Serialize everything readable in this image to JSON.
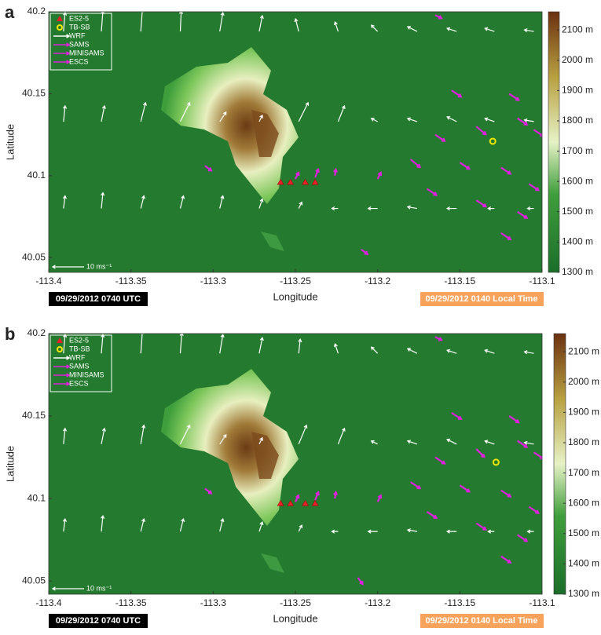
{
  "chart_data": [
    {
      "type": "quiver",
      "panel_label": "a",
      "xlabel": "Longitude",
      "ylabel": "Latitude",
      "xlim": [
        -113.4,
        -113.1
      ],
      "ylim": [
        40.041,
        40.2
      ],
      "xticks": [
        -113.4,
        -113.35,
        -113.3,
        -113.25,
        -113.2,
        -113.15,
        -113.1
      ],
      "yticks": [
        40.05,
        40.1,
        40.15,
        40.2
      ],
      "colorbar": {
        "lim": [
          1300,
          2160
        ],
        "ticks": [
          {
            "value": 1300,
            "label": "1300 m"
          },
          {
            "value": 1400,
            "label": "1400 m"
          },
          {
            "value": 1500,
            "label": "1500 m"
          },
          {
            "value": 1600,
            "label": "1600 m"
          },
          {
            "value": 1700,
            "label": "1700 m"
          },
          {
            "value": 1800,
            "label": "1800 m"
          },
          {
            "value": 1900,
            "label": "1900 m"
          },
          {
            "value": 2000,
            "label": "2000 m"
          },
          {
            "value": 2100,
            "label": "2100 m"
          }
        ]
      },
      "scale_key": {
        "value": 10,
        "label": "10 ms⁻¹"
      },
      "footer_left": "09/29/2012 0740 UTC",
      "footer_right": "09/29/2012 0140 Local Time",
      "series": [
        {
          "name": "ES2-5",
          "color": "#e8202a",
          "marker": "triangle",
          "x": [
            -113.259,
            -113.253,
            -113.244,
            -113.238
          ],
          "y": [
            40.096,
            40.096,
            40.096,
            40.096
          ]
        },
        {
          "name": "TB-SB",
          "color": "#f2e800",
          "marker": "circle",
          "x": [
            -113.13
          ],
          "y": [
            40.121
          ]
        },
        {
          "name": "WRF",
          "color": "#ffffff",
          "marker": "vector",
          "x": [
            -113.391,
            -113.368,
            -113.344,
            -113.32,
            -113.296,
            -113.272,
            -113.248,
            -113.224,
            -113.2,
            -113.176,
            -113.152,
            -113.129,
            -113.105,
            -113.391,
            -113.368,
            -113.344,
            -113.32,
            -113.296,
            -113.272,
            -113.248,
            -113.224,
            -113.2,
            -113.176,
            -113.152,
            -113.129,
            -113.105,
            -113.391,
            -113.368,
            -113.344,
            -113.32,
            -113.296,
            -113.272,
            -113.248,
            -113.224,
            -113.2,
            -113.176,
            -113.152,
            -113.129,
            -113.105
          ],
          "y": [
            40.188,
            40.188,
            40.188,
            40.188,
            40.188,
            40.188,
            40.188,
            40.188,
            40.188,
            40.188,
            40.188,
            40.188,
            40.188,
            40.133,
            40.133,
            40.133,
            40.133,
            40.133,
            40.133,
            40.133,
            40.133,
            40.133,
            40.133,
            40.133,
            40.133,
            40.133,
            40.08,
            40.08,
            40.08,
            40.08,
            40.08,
            40.08,
            40.08,
            40.08,
            40.08,
            40.08,
            40.08,
            40.08,
            40.08
          ],
          "u": [
            0.5,
            0.5,
            0.5,
            0.3,
            1,
            1,
            -1,
            -1,
            -2,
            -3,
            -3,
            -3,
            -3,
            0.5,
            1,
            1.5,
            3,
            2,
            1,
            3,
            2,
            -2,
            -3,
            -3,
            -3,
            -3,
            0.5,
            0.5,
            1,
            1,
            1,
            1,
            1,
            -2,
            -3,
            -3,
            -3,
            -2,
            -2
          ],
          "v": [
            6,
            6.5,
            7,
            6.5,
            6,
            5,
            4,
            3,
            2,
            1.5,
            1,
            1,
            0.5,
            5,
            5,
            6,
            6,
            3,
            2,
            6,
            5,
            1,
            1,
            1.5,
            1,
            0.5,
            4,
            5,
            4,
            4,
            4,
            3,
            2,
            0,
            0,
            0.5,
            0,
            0,
            0
          ]
        },
        {
          "name": "SAMS",
          "color": "#e020e0",
          "marker": "vector",
          "x": [
            -113.305,
            -113.165,
            -113.21,
            -113.2
          ],
          "y": [
            40.106,
            40.198,
            40.055,
            40.098
          ],
          "u": [
            2,
            2,
            2,
            1
          ],
          "v": [
            -1.5,
            -1,
            -1.5,
            2
          ]
        },
        {
          "name": "MINISAMS",
          "color": "#e020e0",
          "marker": "vector",
          "x": [
            -113.25,
            -113.238,
            -113.226
          ],
          "y": [
            40.098,
            40.099,
            40.1
          ],
          "u": [
            1,
            1,
            0.3
          ],
          "v": [
            2,
            2.5,
            2
          ]
        },
        {
          "name": "ESCS",
          "color": "#e020e0",
          "marker": "vector",
          "x": [
            -113.155,
            -113.12,
            -113.14,
            -113.115,
            -113.165,
            -113.105,
            -113.18,
            -113.15,
            -113.125,
            -113.108,
            -113.17,
            -113.14,
            -113.115,
            -113.125
          ],
          "y": [
            40.152,
            40.15,
            40.13,
            40.135,
            40.125,
            40.128,
            40.11,
            40.108,
            40.105,
            40.095,
            40.092,
            40.085,
            40.078,
            40.065
          ],
          "u": [
            3,
            3,
            3,
            3,
            3,
            3,
            3,
            3,
            3,
            3,
            3,
            3,
            3,
            3
          ],
          "v": [
            -2,
            -2,
            -2.5,
            -2,
            -2,
            -2,
            -2.5,
            -2,
            -2,
            -2,
            -2,
            -2,
            -2,
            -2
          ]
        }
      ]
    },
    {
      "type": "quiver",
      "panel_label": "b",
      "xlabel": "Longitude",
      "ylabel": "Latitude",
      "xlim": [
        -113.4,
        -113.1
      ],
      "ylim": [
        40.042,
        40.2
      ],
      "xticks": [
        -113.4,
        -113.35,
        -113.3,
        -113.25,
        -113.2,
        -113.15,
        -113.1
      ],
      "yticks": [
        40.05,
        40.1,
        40.15,
        40.2
      ],
      "colorbar": {
        "lim": [
          1300,
          2160
        ],
        "ticks": [
          {
            "value": 1300,
            "label": "1300 m"
          },
          {
            "value": 1400,
            "label": "1400 m"
          },
          {
            "value": 1500,
            "label": "1500 m"
          },
          {
            "value": 1600,
            "label": "1600 m"
          },
          {
            "value": 1700,
            "label": "1700 m"
          },
          {
            "value": 1800,
            "label": "1800 m"
          },
          {
            "value": 1900,
            "label": "1900 m"
          },
          {
            "value": 2000,
            "label": "2000 m"
          },
          {
            "value": 2100,
            "label": "2100 m"
          }
        ]
      },
      "scale_key": {
        "value": 10,
        "label": "10 ms⁻¹"
      },
      "footer_left": "09/29/2012 0740 UTC",
      "footer_right": "09/29/2012 0140 Local Time",
      "series": [
        {
          "name": "ES2-5",
          "color": "#e8202a",
          "marker": "triangle",
          "x": [
            -113.259,
            -113.253,
            -113.244,
            -113.238
          ],
          "y": [
            40.097,
            40.097,
            40.097,
            40.097
          ]
        },
        {
          "name": "TB-SB",
          "color": "#f2e800",
          "marker": "circle",
          "x": [
            -113.128
          ],
          "y": [
            40.122
          ]
        },
        {
          "name": "WRF",
          "color": "#ffffff",
          "marker": "vector",
          "x": [
            -113.391,
            -113.368,
            -113.344,
            -113.32,
            -113.296,
            -113.272,
            -113.248,
            -113.224,
            -113.2,
            -113.176,
            -113.152,
            -113.129,
            -113.105,
            -113.391,
            -113.368,
            -113.344,
            -113.32,
            -113.296,
            -113.272,
            -113.248,
            -113.224,
            -113.2,
            -113.176,
            -113.152,
            -113.129,
            -113.105,
            -113.391,
            -113.368,
            -113.344,
            -113.32,
            -113.296,
            -113.272,
            -113.248,
            -113.224,
            -113.2,
            -113.176,
            -113.152,
            -113.129,
            -113.105
          ],
          "y": [
            40.188,
            40.188,
            40.188,
            40.188,
            40.188,
            40.188,
            40.188,
            40.188,
            40.188,
            40.188,
            40.188,
            40.188,
            40.188,
            40.133,
            40.133,
            40.133,
            40.133,
            40.133,
            40.133,
            40.133,
            40.133,
            40.133,
            40.133,
            40.133,
            40.133,
            40.133,
            40.08,
            40.08,
            40.08,
            40.08,
            40.08,
            40.08,
            40.08,
            40.08,
            40.08,
            40.08,
            40.08,
            40.08,
            40.08
          ],
          "u": [
            0.5,
            0.5,
            0.5,
            0.5,
            1,
            1,
            0.5,
            -1,
            -2,
            -3,
            -3,
            -3,
            -3,
            0.5,
            1,
            1,
            3,
            2,
            1,
            2.5,
            2,
            -2,
            -3,
            -3,
            -3,
            -3,
            0.5,
            0.5,
            1,
            1,
            1,
            1,
            1,
            -2,
            -3,
            -3,
            -3,
            -2,
            -2
          ],
          "v": [
            6,
            6,
            7,
            6.5,
            6,
            5,
            4.5,
            3,
            2,
            1.5,
            1,
            1,
            0.5,
            5,
            5,
            6,
            6,
            3,
            2,
            6,
            5,
            1,
            1,
            1.5,
            1,
            0.5,
            4,
            5,
            4,
            4,
            4,
            3,
            2,
            0,
            0,
            0.5,
            0,
            0,
            0
          ]
        },
        {
          "name": "SAMS",
          "color": "#e020e0",
          "marker": "vector",
          "x": [
            -113.305,
            -113.165,
            -113.212,
            -113.2
          ],
          "y": [
            40.106,
            40.198,
            40.052,
            40.098
          ],
          "u": [
            2,
            2,
            1.5,
            1
          ],
          "v": [
            -1.5,
            -1,
            -2,
            2
          ]
        },
        {
          "name": "MINISAMS",
          "color": "#e020e0",
          "marker": "vector",
          "x": [
            -113.25,
            -113.238,
            -113.226
          ],
          "y": [
            40.098,
            40.099,
            40.1
          ],
          "u": [
            1,
            1,
            0.3
          ],
          "v": [
            2,
            2.5,
            2
          ]
        },
        {
          "name": "ESCS",
          "color": "#e020e0",
          "marker": "vector",
          "x": [
            -113.155,
            -113.12,
            -113.14,
            -113.115,
            -113.165,
            -113.105,
            -113.18,
            -113.15,
            -113.125,
            -113.108,
            -113.17,
            -113.14,
            -113.115,
            -113.125
          ],
          "y": [
            40.152,
            40.15,
            40.13,
            40.135,
            40.125,
            40.128,
            40.11,
            40.108,
            40.105,
            40.095,
            40.092,
            40.085,
            40.078,
            40.065
          ],
          "u": [
            3,
            3,
            2.5,
            3,
            3,
            3,
            3,
            3,
            3,
            3,
            3,
            3,
            3,
            3
          ],
          "v": [
            -2,
            -2,
            -2.5,
            -2,
            -2,
            -2,
            -2,
            -2,
            -2,
            -2,
            -2,
            -2,
            -2,
            -2
          ]
        }
      ]
    }
  ]
}
